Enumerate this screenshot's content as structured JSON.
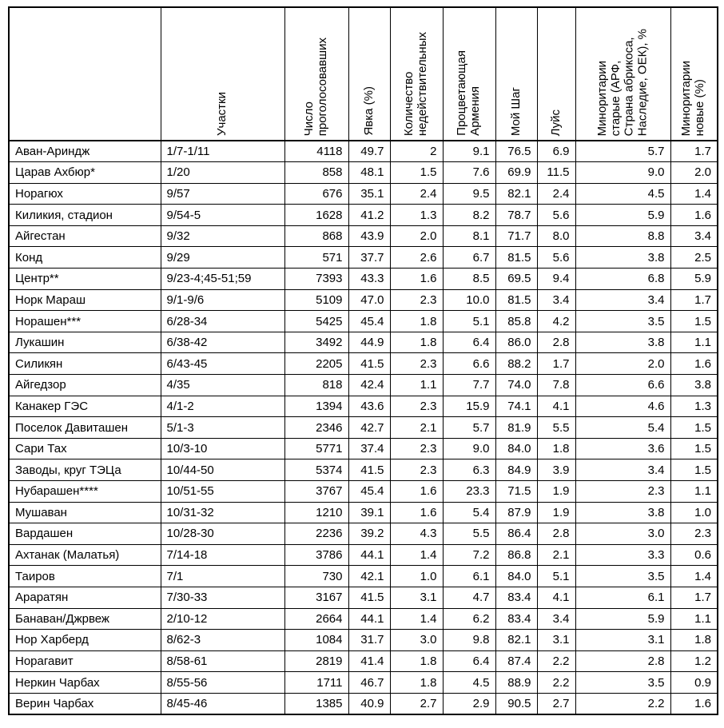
{
  "chart_data": {
    "type": "table",
    "columns": [
      {
        "key": "name",
        "label": ""
      },
      {
        "key": "precincts",
        "label": "Участки"
      },
      {
        "key": "voters",
        "label": "Число\nпроголосовавших"
      },
      {
        "key": "turnout",
        "label": "Явка (%)"
      },
      {
        "key": "invalid",
        "label": "Количество\nнедействительных"
      },
      {
        "key": "prosperous-armenia",
        "label": "Процветающая\nАрмения"
      },
      {
        "key": "my-step",
        "label": "Мой Шаг"
      },
      {
        "key": "luys",
        "label": "Луйс"
      },
      {
        "key": "minorities-old",
        "label": "Миноритарии\nстарые (АРФ,\nСтрана абрикоса,\nНаследие, ОЕК), %"
      },
      {
        "key": "minorities-new",
        "label": "Миноритарии\nновые (%)"
      }
    ],
    "rows": [
      [
        "Аван-Ариндж",
        "1/7-1/11",
        "4118",
        "49.7",
        "2",
        "9.1",
        "76.5",
        "6.9",
        "5.7",
        "1.7"
      ],
      [
        "Царав Ахбюр*",
        "1/20",
        "858",
        "48.1",
        "1.5",
        "7.6",
        "69.9",
        "11.5",
        "9.0",
        "2.0"
      ],
      [
        "Норагюх",
        "9/57",
        "676",
        "35.1",
        "2.4",
        "9.5",
        "82.1",
        "2.4",
        "4.5",
        "1.4"
      ],
      [
        "Киликия, стадион",
        "9/54-5",
        "1628",
        "41.2",
        "1.3",
        "8.2",
        "78.7",
        "5.6",
        "5.9",
        "1.6"
      ],
      [
        "Айгестан",
        "9/32",
        "868",
        "43.9",
        "2.0",
        "8.1",
        "71.7",
        "8.0",
        "8.8",
        "3.4"
      ],
      [
        "Конд",
        "9/29",
        "571",
        "37.7",
        "2.6",
        "6.7",
        "81.5",
        "5.6",
        "3.8",
        "2.5"
      ],
      [
        "Центр**",
        "9/23-4;45-51;59",
        "7393",
        "43.3",
        "1.6",
        "8.5",
        "69.5",
        "9.4",
        "6.8",
        "5.9"
      ],
      [
        "Норк Мараш",
        "9/1-9/6",
        "5109",
        "47.0",
        "2.3",
        "10.0",
        "81.5",
        "3.4",
        "3.4",
        "1.7"
      ],
      [
        "Норашен***",
        "6/28-34",
        "5425",
        "45.4",
        "1.8",
        "5.1",
        "85.8",
        "4.2",
        "3.5",
        "1.5"
      ],
      [
        "Лукашин",
        "6/38-42",
        "3492",
        "44.9",
        "1.8",
        "6.4",
        "86.0",
        "2.8",
        "3.8",
        "1.1"
      ],
      [
        "Силикян",
        "6/43-45",
        "2205",
        "41.5",
        "2.3",
        "6.6",
        "88.2",
        "1.7",
        "2.0",
        "1.6"
      ],
      [
        "Айгедзор",
        "4/35",
        "818",
        "42.4",
        "1.1",
        "7.7",
        "74.0",
        "7.8",
        "6.6",
        "3.8"
      ],
      [
        "Канакер ГЭС",
        "4/1-2",
        "1394",
        "43.6",
        "2.3",
        "15.9",
        "74.1",
        "4.1",
        "4.6",
        "1.3"
      ],
      [
        "Поселок Давиташен",
        "5/1-3",
        "2346",
        "42.7",
        "2.1",
        "5.7",
        "81.9",
        "5.5",
        "5.4",
        "1.5"
      ],
      [
        "Сари Тах",
        "10/3-10",
        "5771",
        "37.4",
        "2.3",
        "9.0",
        "84.0",
        "1.8",
        "3.6",
        "1.5"
      ],
      [
        "Заводы, круг ТЭЦа",
        "10/44-50",
        "5374",
        "41.5",
        "2.3",
        "6.3",
        "84.9",
        "3.9",
        "3.4",
        "1.5"
      ],
      [
        "Нубарашен****",
        "10/51-55",
        "3767",
        "45.4",
        "1.6",
        "23.3",
        "71.5",
        "1.9",
        "2.3",
        "1.1"
      ],
      [
        "Мушаван",
        "10/31-32",
        "1210",
        "39.1",
        "1.6",
        "5.4",
        "87.9",
        "1.9",
        "3.8",
        "1.0"
      ],
      [
        "Вардашен",
        "10/28-30",
        "2236",
        "39.2",
        "4.3",
        "5.5",
        "86.4",
        "2.8",
        "3.0",
        "2.3"
      ],
      [
        "Ахтанак (Малатья)",
        "7/14-18",
        "3786",
        "44.1",
        "1.4",
        "7.2",
        "86.8",
        "2.1",
        "3.3",
        "0.6"
      ],
      [
        "Таиров",
        "7/1",
        "730",
        "42.1",
        "1.0",
        "6.1",
        "84.0",
        "5.1",
        "3.5",
        "1.4"
      ],
      [
        "Араратян",
        "7/30-33",
        "3167",
        "41.5",
        "3.1",
        "4.7",
        "83.4",
        "4.1",
        "6.1",
        "1.7"
      ],
      [
        "Банаван/Джрвеж",
        "2/10-12",
        "2664",
        "44.1",
        "1.4",
        "6.2",
        "83.4",
        "3.4",
        "5.9",
        "1.1"
      ],
      [
        "Нор Харберд",
        "8/62-3",
        "1084",
        "31.7",
        "3.0",
        "9.8",
        "82.1",
        "3.1",
        "3.1",
        "1.8"
      ],
      [
        "Норагавит",
        "8/58-61",
        "2819",
        "41.4",
        "1.8",
        "6.4",
        "87.4",
        "2.2",
        "2.8",
        "1.2"
      ],
      [
        "Неркин Чарбах",
        "8/55-56",
        "1711",
        "46.7",
        "1.8",
        "4.5",
        "88.9",
        "2.2",
        "3.5",
        "0.9"
      ],
      [
        "Верин Чарбах",
        "8/45-46",
        "1385",
        "40.9",
        "2.7",
        "2.9",
        "90.5",
        "2.7",
        "2.2",
        "1.6"
      ]
    ],
    "colors": {
      "border": "#000000",
      "background": "#ffffff",
      "text": "#000000"
    },
    "layout": {
      "header_rotated": true,
      "grid": "all-borders"
    }
  }
}
